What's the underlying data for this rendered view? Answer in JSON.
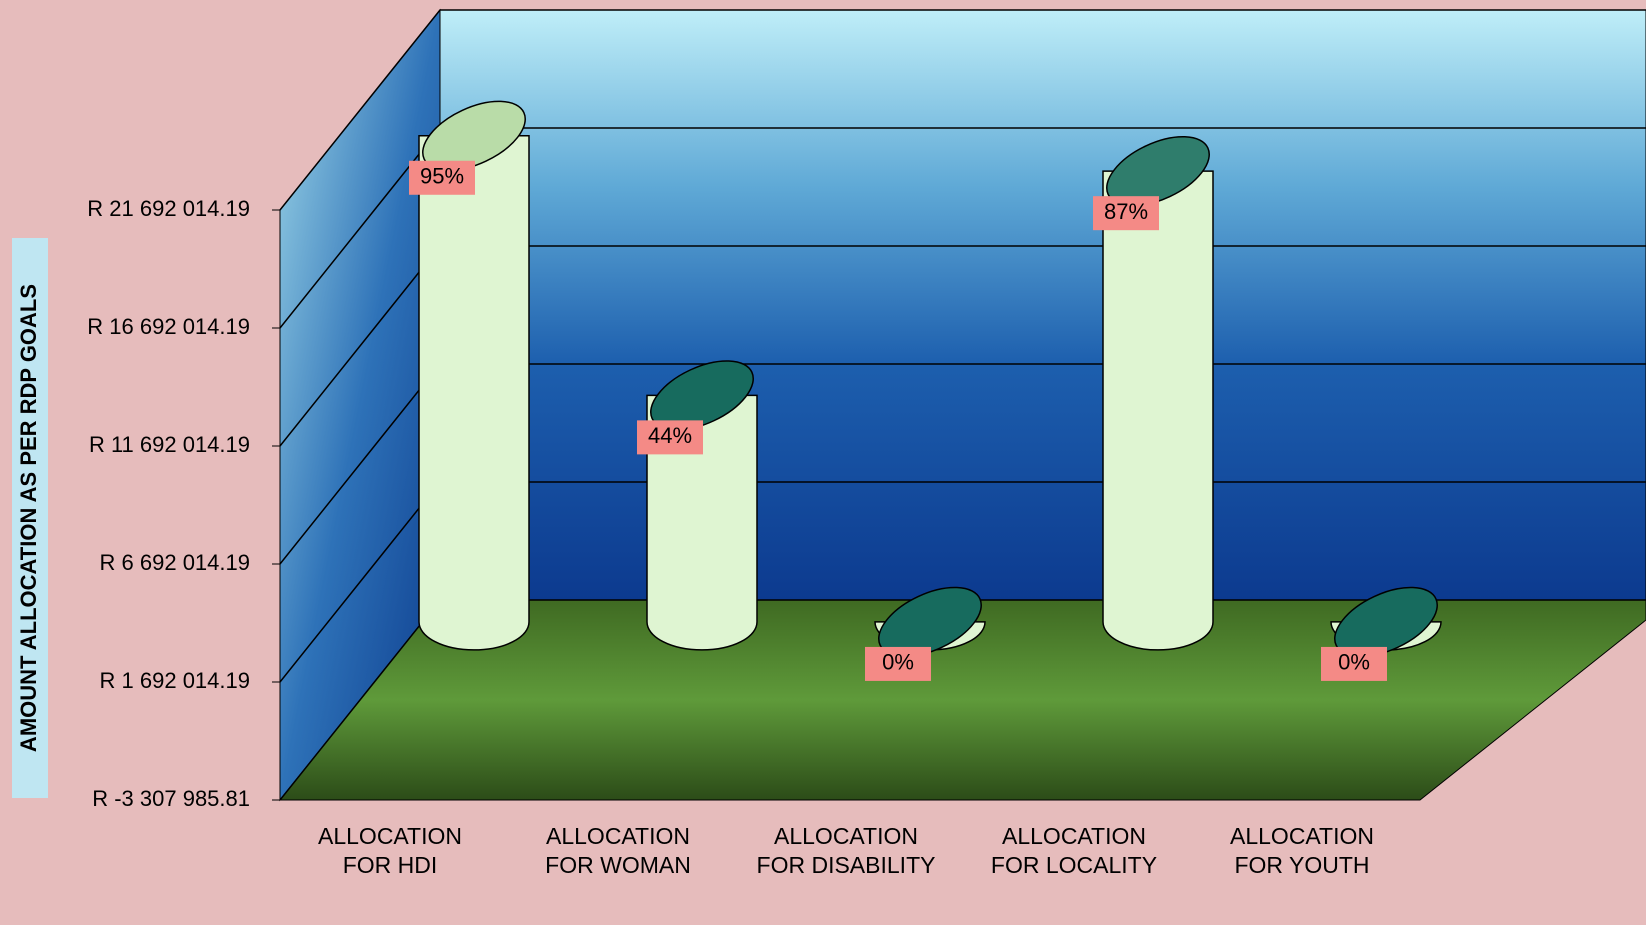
{
  "chart_data": {
    "type": "cylinder",
    "y_axis_label": "AMOUNT ALLOCATION AS PER RDP GOALS",
    "categories": [
      "ALLOCATION\nFOR HDI",
      "ALLOCATION\nFOR WOMAN",
      "ALLOCATION\nFOR DISABILITY",
      "ALLOCATION\nFOR LOCALITY",
      "ALLOCATION\nFOR YOUTH"
    ],
    "values": [
      20600000,
      9600000,
      0,
      19100000,
      0
    ],
    "data_labels": [
      "95%",
      "44%",
      "0%",
      "87%",
      "0%"
    ],
    "color": "#dff5d2",
    "top_colors": [
      "#b9dca8",
      "#176b5e",
      "#176b5e",
      "#2f7d6c",
      "#176b5e"
    ],
    "ylim": [
      -3307985.81,
      21692014.19
    ],
    "yticks": [
      {
        "value": -3307985.81,
        "label": "R -3 307 985.81"
      },
      {
        "value": 1692014.19,
        "label": "R 1 692 014.19"
      },
      {
        "value": 6692014.19,
        "label": "R 6 692 014.19"
      },
      {
        "value": 11692014.19,
        "label": "R 11 692 014.19"
      },
      {
        "value": 16692014.19,
        "label": "R 16 692 014.19"
      },
      {
        "value": 21692014.19,
        "label": "R 21 692 014.19"
      }
    ],
    "grid": true
  }
}
